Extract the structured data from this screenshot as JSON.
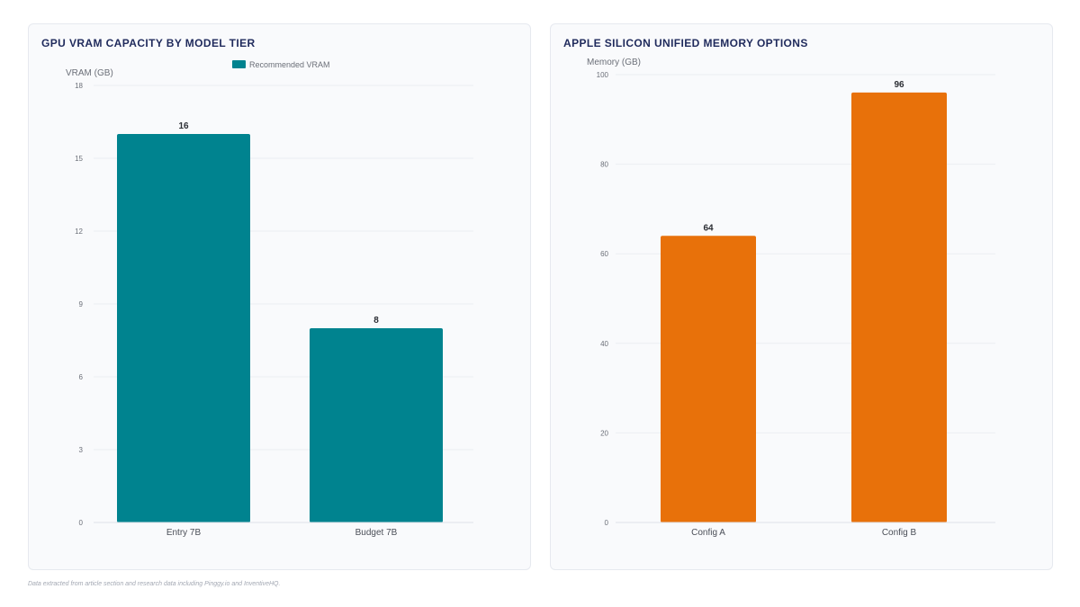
{
  "colors": {
    "teal": "#00838f",
    "orange": "#e8710a",
    "grid": "#eceef2",
    "axis_text": "#6b6f78",
    "value_text": "#2b2d33",
    "title": "#1f2a5c"
  },
  "chart_data": [
    {
      "type": "bar",
      "title": "GPU VRAM CAPACITY BY MODEL TIER",
      "ylabel": "VRAM (GB)",
      "xlabel": "",
      "categories": [
        "Entry 7B",
        "Budget 7B"
      ],
      "series": [
        {
          "name": "Recommended VRAM",
          "values": [
            16,
            8
          ]
        }
      ],
      "data_labels": [
        "16",
        "8"
      ],
      "ylim": [
        0,
        18
      ],
      "yticks": [
        0,
        3,
        6,
        9,
        12,
        15,
        18
      ],
      "ytick_labels": [
        "0",
        "3",
        "6",
        "9",
        "12",
        "15",
        "18"
      ],
      "legend": "top-center",
      "grid": true,
      "color": "teal"
    },
    {
      "type": "bar",
      "title": "APPLE SILICON UNIFIED MEMORY OPTIONS",
      "ylabel": "Memory (GB)",
      "xlabel": "",
      "categories": [
        "Config A",
        "Config B"
      ],
      "series": [
        {
          "values": [
            64,
            96
          ]
        }
      ],
      "data_labels": [
        "64",
        "96"
      ],
      "ylim": [
        0,
        100
      ],
      "yticks": [
        0,
        20,
        40,
        60,
        80,
        100
      ],
      "ytick_labels": [
        "0",
        "20",
        "40",
        "60",
        "80",
        "100"
      ],
      "legend": "none",
      "grid": true,
      "color": "orange"
    }
  ],
  "footnote": "Data extracted from article section and research data including Pinggy.io and InventiveHQ."
}
